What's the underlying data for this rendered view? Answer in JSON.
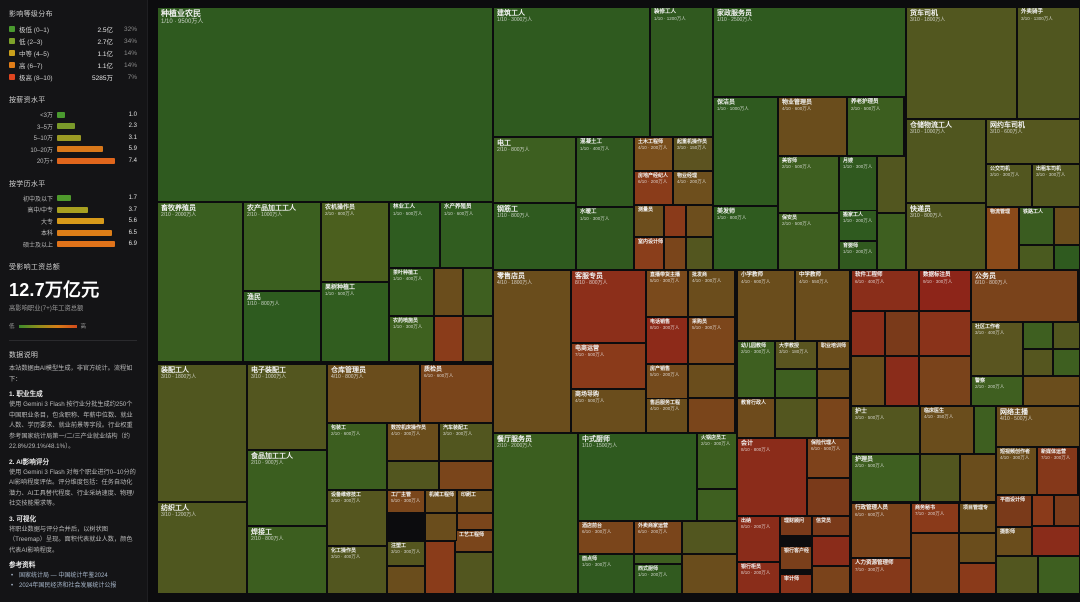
{
  "sidebar": {
    "impact_title": "影响等级分布",
    "impact_levels": [
      {
        "label": "极低 (0–1)",
        "amount": "2.5亿",
        "pct": "32%",
        "color": "#4a9a2f"
      },
      {
        "label": "低 (2–3)",
        "amount": "2.7亿",
        "pct": "34%",
        "color": "#7ea22a"
      },
      {
        "label": "中等 (4–5)",
        "amount": "1.1亿",
        "pct": "14%",
        "color": "#c9a01c"
      },
      {
        "label": "高 (6–7)",
        "amount": "1.1亿",
        "pct": "14%",
        "color": "#e07d18"
      },
      {
        "label": "极高 (8–10)",
        "amount": "5285万",
        "pct": "7%",
        "color": "#e0451f"
      }
    ],
    "salary_title": "按薪资水平",
    "salary_levels": [
      {
        "label": "<3万",
        "value": "1.0",
        "ratio": 0.135,
        "color": "#4a9a2f"
      },
      {
        "label": "3–5万",
        "value": "2.3",
        "ratio": 0.31,
        "color": "#7a9a2a"
      },
      {
        "label": "5–10万",
        "value": "3.1",
        "ratio": 0.42,
        "color": "#9a9a24"
      },
      {
        "label": "10–20万",
        "value": "5.9",
        "ratio": 0.8,
        "color": "#d9781a"
      },
      {
        "label": "20万+",
        "value": "7.4",
        "ratio": 1.0,
        "color": "#e0661c"
      }
    ],
    "edu_title": "按学历水平",
    "edu_levels": [
      {
        "label": "初中及以下",
        "value": "1.7",
        "ratio": 0.246,
        "color": "#4f9a2c"
      },
      {
        "label": "高中/中专",
        "value": "3.7",
        "ratio": 0.536,
        "color": "#a8a020"
      },
      {
        "label": "大专",
        "value": "5.6",
        "ratio": 0.81,
        "color": "#d79a1a"
      },
      {
        "label": "本科",
        "value": "6.5",
        "ratio": 0.94,
        "color": "#dd7e18"
      },
      {
        "label": "硕士及以上",
        "value": "6.9",
        "ratio": 1.0,
        "color": "#e0731a"
      }
    ],
    "wage_title": "受影响工资总额",
    "wage_total": "12.7万亿元",
    "wage_sub": "高影响职业(7+)年工资总额",
    "grad_low": "低",
    "grad_high": "高",
    "notes_title": "数据说明",
    "notes_intro": "本站数据由AI模型生成，非官方统计。流程如下：",
    "step1_title": "1. 职业生成",
    "step1_text": "使用 Gemini 3 Flash 按行业分批生成约250个中国职业条目，包含职称、年薪中位数、就业人数、学历要求、就业前景等字段。行业权重参考国家统计局第一/二/三产业就业结构（约22.8%/29.1%/48.1%）。",
    "step2_title": "2. AI影响评分",
    "step2_text": "使用 Gemini 3 Flash 对每个职业进行0–10分的AI影响程度评估。评分维度包括：任务自动化潜力、AI工具替代程度、行业采纳速度、物理/社交技能需求等。",
    "step3_title": "3. 可视化",
    "step3_text": "将职业数据与评分合并后，以树状图（Treemap）呈现。面积代表就业人数，颜色代表AI影响程度。",
    "refs_title": "参考资料",
    "refs": [
      "国家统计局 — 中国统计年鉴2024",
      "2024年国民经济和社会发展统计公报"
    ]
  },
  "treemap": {
    "cells": [
      {
        "name": "种植业农民",
        "sub": "1/10 · 9500万人",
        "color": "#2f5a1f"
      },
      {
        "name": "畜牧养殖员",
        "sub": "2/10 · 2000万人",
        "color": "#3a5f20"
      },
      {
        "name": "农产品加工工人",
        "sub": "2/10 · 1000万人",
        "color": "#3b5f1f"
      },
      {
        "name": "农机操作员",
        "sub": "2/10 · 800万人",
        "color": "#4b5f1e"
      },
      {
        "name": "林业工人",
        "sub": "1/10 · 500万人",
        "color": "#2f5c20"
      },
      {
        "name": "水产养殖员",
        "sub": "1/10 · 600万人",
        "color": "#315d20"
      },
      {
        "name": "渔民",
        "sub": "1/10 · 800万人",
        "color": "#2e5b1f"
      },
      {
        "name": "果树种植工",
        "sub": "1/10 · 500万人",
        "color": "#315d1f"
      },
      {
        "name": "茶叶种植工",
        "sub": "1/10 · 400万人",
        "color": "#365e1f"
      },
      {
        "name": "农药喷施员",
        "sub": "1/10 · 300万人",
        "color": "#3e611f"
      },
      {
        "name": "建筑工人",
        "sub": "1/10 · 3000万人",
        "color": "#2f5a1f"
      },
      {
        "name": "装修工人",
        "sub": "1/10 · 1200万人",
        "color": "#30591f"
      },
      {
        "name": "电工",
        "sub": "2/10 · 800万人",
        "color": "#3d5f20"
      },
      {
        "name": "混凝土工",
        "sub": "1/10 · 400万人",
        "color": "#31591f"
      },
      {
        "name": "钢筋工",
        "sub": "1/10 · 800万人",
        "color": "#2f5a1f"
      },
      {
        "name": "水暖工",
        "sub": "1/10 · 300万人",
        "color": "#31591f"
      },
      {
        "name": "土木工程师",
        "sub": "4/10 · 200万人",
        "color": "#7a4f1c"
      },
      {
        "name": "起重机操作员",
        "sub": "3/10 · 150万人",
        "color": "#5c5320"
      },
      {
        "name": "房地产经纪人",
        "sub": "6/10 · 200万人",
        "color": "#8a3c1a"
      },
      {
        "name": "物业经理",
        "sub": "4/10 · 200万人",
        "color": "#6e4f1d"
      },
      {
        "name": "测量员",
        "sub": "",
        "color": "#6d4e1d"
      },
      {
        "name": "室内设计师",
        "sub": "",
        "color": "#8a3e1b"
      },
      {
        "name": "家政服务员",
        "sub": "1/10 · 2500万人",
        "color": "#2f5a1f"
      },
      {
        "name": "保洁员",
        "sub": "1/10 · 1000万人",
        "color": "#2f5a1f"
      },
      {
        "name": "物业管理员",
        "sub": "4/10 · 600万人",
        "color": "#6a4d1c"
      },
      {
        "name": "养老护理员",
        "sub": "2/10 · 500万人",
        "color": "#3c5e1f"
      },
      {
        "name": "美容师",
        "sub": "2/10 · 500万人",
        "color": "#3e5f20"
      },
      {
        "name": "月嫂",
        "sub": "1/10 · 300万人",
        "color": "#30591f"
      },
      {
        "name": "美发师",
        "sub": "1/10 · 800万人",
        "color": "#2f5b1f"
      },
      {
        "name": "保安员",
        "sub": "2/10 · 500万人",
        "color": "#3e5f20"
      },
      {
        "name": "搬家工人",
        "sub": "1/10 · 200万人",
        "color": "#2f5a1f"
      },
      {
        "name": "育婴师",
        "sub": "1/10 · 200万人",
        "color": "#31591f"
      },
      {
        "name": "货车司机",
        "sub": "3/10 · 1800万人",
        "color": "#52571f"
      },
      {
        "name": "外卖骑手",
        "sub": "3/10 · 1300万人",
        "color": "#50561f"
      },
      {
        "name": "仓储物流工人",
        "sub": "3/10 · 1000万人",
        "color": "#50561f"
      },
      {
        "name": "网约车司机",
        "sub": "3/10 · 600万人",
        "color": "#55571f"
      },
      {
        "name": "公交司机",
        "sub": "3/10 · 300万人",
        "color": "#52561f"
      },
      {
        "name": "出租车司机",
        "sub": "3/10 · 300万人",
        "color": "#52561f"
      },
      {
        "name": "快递员",
        "sub": "3/10 · 800万人",
        "color": "#50561f"
      },
      {
        "name": "物流管理",
        "sub": "",
        "color": "#8a4a1a"
      },
      {
        "name": "铁路工人",
        "sub": "",
        "color": "#3a5c20"
      },
      {
        "name": "零售店员",
        "sub": "4/10 · 1800万人",
        "color": "#6a4d1c"
      },
      {
        "name": "客服专员",
        "sub": "8/10 · 800万人",
        "color": "#8c2f1a"
      },
      {
        "name": "直播带货主播",
        "sub": "5/10 · 300万人",
        "color": "#7a4a1c"
      },
      {
        "name": "批发商",
        "sub": "4/10 · 300万人",
        "color": "#6b4d1c"
      },
      {
        "name": "电话销售",
        "sub": "8/10 · 300万人",
        "color": "#8d2a19"
      },
      {
        "name": "采购员",
        "sub": "5/10 · 300万人",
        "color": "#7c461b"
      },
      {
        "name": "电商运营",
        "sub": "7/10 · 500万人",
        "color": "#8a3a1a"
      },
      {
        "name": "房产销售",
        "sub": "5/10 · 200万人",
        "color": "#744a1c"
      },
      {
        "name": "商场导购",
        "sub": "4/10 · 500万人",
        "color": "#6a4d1c"
      },
      {
        "name": "售后服务工程",
        "sub": "4/10 · 200万人",
        "color": "#6a4d1c"
      },
      {
        "name": "小学教师",
        "sub": "4/10 · 600万人",
        "color": "#6a4d1c"
      },
      {
        "name": "中学教师",
        "sub": "4/10 · 550万人",
        "color": "#6a4d1c"
      },
      {
        "name": "幼儿园教师",
        "sub": "2/10 · 300万人",
        "color": "#3e5f20"
      },
      {
        "name": "大学教授",
        "sub": "3/10 · 180万人",
        "color": "#5a5520"
      },
      {
        "name": "职业培训师",
        "sub": "",
        "color": "#6a4d1c"
      },
      {
        "name": "教育行政人",
        "sub": "",
        "color": "#6e4b1c"
      },
      {
        "name": "软件工程师",
        "sub": "6/10 · 400万人",
        "color": "#8a2e1a"
      },
      {
        "name": "数据标注员",
        "sub": "9/10 · 300万人",
        "color": "#8d2519"
      },
      {
        "name": "公务员",
        "sub": "6/10 · 800万人",
        "color": "#7a431b"
      },
      {
        "name": "社区工作者",
        "sub": "3/10 · 400万人",
        "color": "#5a5520"
      },
      {
        "name": "警察",
        "sub": "2/10 · 200万人",
        "color": "#3f5f20"
      },
      {
        "name": "装配工人",
        "sub": "3/10 · 1800万人",
        "color": "#50561f"
      },
      {
        "name": "电子装配工",
        "sub": "3/10 · 1000万人",
        "color": "#53561f"
      },
      {
        "name": "仓库管理员",
        "sub": "4/10 · 800万人",
        "color": "#6a4d1c"
      },
      {
        "name": "质检员",
        "sub": "6/10 · 600万人",
        "color": "#7a451b"
      },
      {
        "name": "包装工",
        "sub": "2/10 · 600万人",
        "color": "#3c5e1f"
      },
      {
        "name": "数控机床操作员",
        "sub": "4/10 · 300万人",
        "color": "#6a4d1c"
      },
      {
        "name": "汽车装配工",
        "sub": "3/10 · 300万人",
        "color": "#52561f"
      },
      {
        "name": "食品加工工人",
        "sub": "2/10 · 900万人",
        "color": "#3b5e1f"
      },
      {
        "name": "纺织工人",
        "sub": "3/10 · 1200万人",
        "color": "#4f571f"
      },
      {
        "name": "焊接工",
        "sub": "2/10 · 800万人",
        "color": "#3c5e1f"
      },
      {
        "name": "设备维修技工",
        "sub": "3/10 · 300万人",
        "color": "#55561f"
      },
      {
        "name": "工厂主管",
        "sub": "5/10 · 300万人",
        "color": "#7a461b"
      },
      {
        "name": "机械工程师",
        "sub": "",
        "color": "#6a4d1c"
      },
      {
        "name": "印刷工",
        "sub": "",
        "color": "#6a4d1c"
      },
      {
        "name": "化工操作员",
        "sub": "3/10 · 400万人",
        "color": "#52561f"
      },
      {
        "name": "注塑工",
        "sub": "3/10 · 300万人",
        "color": "#55561f"
      },
      {
        "name": "工艺工程师",
        "sub": "",
        "color": "#7a451b"
      },
      {
        "name": "餐厅服务员",
        "sub": "2/10 · 2000万人",
        "color": "#3b5e1f"
      },
      {
        "name": "中式厨师",
        "sub": "1/10 · 1500万人",
        "color": "#2f5a1f"
      },
      {
        "name": "火锅店员工",
        "sub": "2/10 · 300万人",
        "color": "#3c5e1f"
      },
      {
        "name": "酒店前台",
        "sub": "6/10 · 300万人",
        "color": "#7a451b"
      },
      {
        "name": "外卖商家运营",
        "sub": "6/10 · 200万人",
        "color": "#7a451b"
      },
      {
        "name": "面点师",
        "sub": "1/10 · 300万人",
        "color": "#30591f"
      },
      {
        "name": "西式厨师",
        "sub": "1/10 · 200万人",
        "color": "#315a1f"
      },
      {
        "name": "会计",
        "sub": "8/10 · 800万人",
        "color": "#8b2c1a"
      },
      {
        "name": "保险代理人",
        "sub": "6/10 · 500万人",
        "color": "#7e421b"
      },
      {
        "name": "出纳",
        "sub": "8/10 · 200万人",
        "color": "#8a2c1a"
      },
      {
        "name": "理财顾问",
        "sub": "",
        "color": "#7a3a1a"
      },
      {
        "name": "信贷员",
        "sub": "",
        "color": "#7a3a1a"
      },
      {
        "name": "银行柜员",
        "sub": "8/10 · 200万人",
        "color": "#8a2d1a"
      },
      {
        "name": "银行客户经",
        "sub": "",
        "color": "#7a3f1b"
      },
      {
        "name": "审计师",
        "sub": "",
        "color": "#8a331a"
      },
      {
        "name": "护士",
        "sub": "3/10 · 500万人",
        "color": "#53561f"
      },
      {
        "name": "临床医生",
        "sub": "4/10 · 350万人",
        "color": "#6a4d1c"
      },
      {
        "name": "护理员",
        "sub": "2/10 · 500万人",
        "color": "#3e5f20"
      },
      {
        "name": "网络主播",
        "sub": "4/10 · 500万人",
        "color": "#6a4d1c"
      },
      {
        "name": "短视频创作者",
        "sub": "4/10 · 300万人",
        "color": "#6a4d1c"
      },
      {
        "name": "新媒体运营",
        "sub": "7/10 · 300万人",
        "color": "#85381a"
      },
      {
        "name": "平面设计师",
        "sub": "",
        "color": "#7a3a1a"
      },
      {
        "name": "摄影师",
        "sub": "",
        "color": "#6a4d1c"
      },
      {
        "name": "行政管理人员",
        "sub": "6/10 · 600万人",
        "color": "#7a431b"
      },
      {
        "name": "商务秘书",
        "sub": "7/10 · 200万人",
        "color": "#8a3a1a"
      },
      {
        "name": "项目管理专",
        "sub": "",
        "color": "#6a4d1c"
      },
      {
        "name": "人力资源管理师",
        "sub": "7/10 · 300万人",
        "color": "#85391a"
      }
    ]
  }
}
